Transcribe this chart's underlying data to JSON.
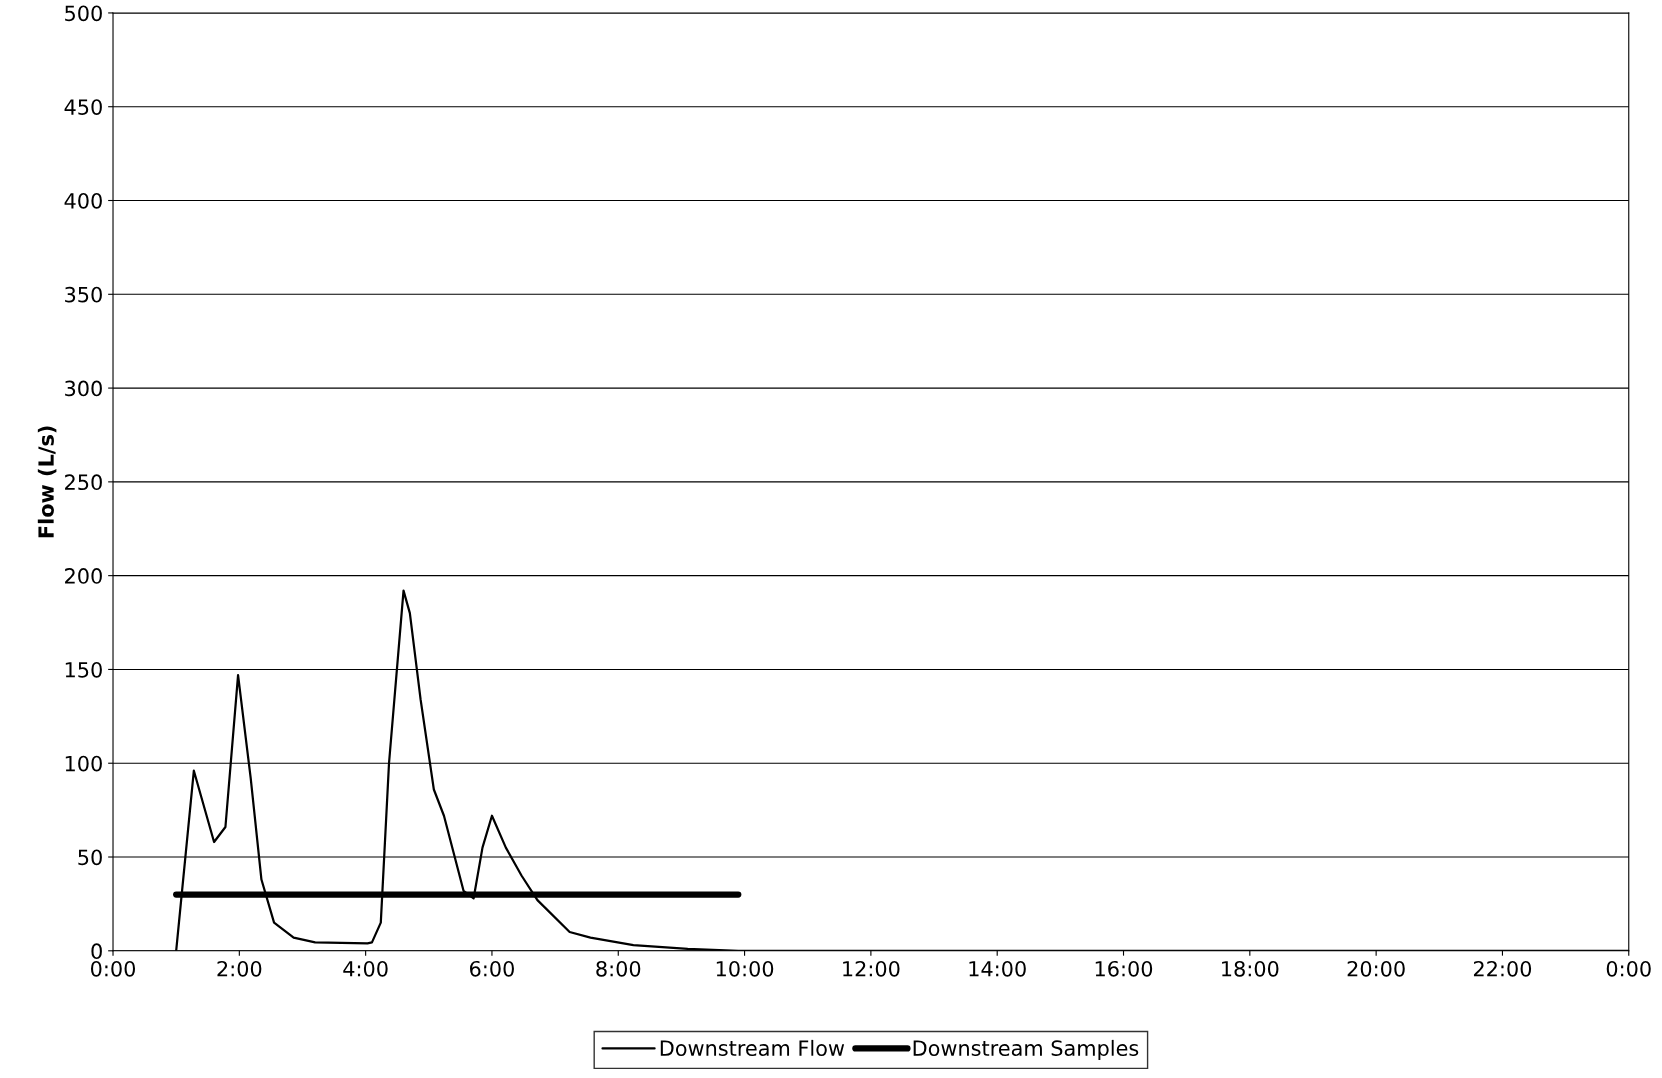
{
  "chart_data": {
    "type": "line",
    "ylabel": "Flow (L/s)",
    "xlim": [
      0,
      24
    ],
    "ylim": [
      0,
      500
    ],
    "xticks": [
      {
        "value": 0,
        "label": "0:00"
      },
      {
        "value": 2,
        "label": "2:00"
      },
      {
        "value": 4,
        "label": "4:00"
      },
      {
        "value": 6,
        "label": "6:00"
      },
      {
        "value": 8,
        "label": "8:00"
      },
      {
        "value": 10,
        "label": "10:00"
      },
      {
        "value": 12,
        "label": "12:00"
      },
      {
        "value": 14,
        "label": "14:00"
      },
      {
        "value": 16,
        "label": "16:00"
      },
      {
        "value": 18,
        "label": "18:00"
      },
      {
        "value": 20,
        "label": "20:00"
      },
      {
        "value": 22,
        "label": "22:00"
      },
      {
        "value": 24,
        "label": "0:00"
      }
    ],
    "yticks": [
      0,
      50,
      100,
      150,
      200,
      250,
      300,
      350,
      400,
      450,
      500
    ],
    "grid": "y",
    "legend": "bottom",
    "marker": "none",
    "series": [
      {
        "name": "Downstream Flow",
        "color": "#000000",
        "line_style": "solid",
        "x": [
          1.0,
          1.28,
          1.6,
          1.78,
          1.98,
          2.18,
          2.35,
          2.55,
          2.86,
          3.2,
          4.03,
          4.1,
          4.24,
          4.37,
          4.6,
          4.7,
          4.87,
          5.08,
          5.24,
          5.55,
          5.71,
          5.85,
          6.0,
          6.22,
          6.47,
          6.72,
          7.23,
          7.56,
          8.24,
          9.1,
          9.9,
          24
        ],
        "values": [
          0,
          96,
          58,
          66,
          147,
          92,
          38,
          15,
          7,
          4.5,
          4,
          4.5,
          15,
          100,
          192,
          180,
          134,
          86,
          72,
          32,
          28,
          55,
          72,
          55,
          40,
          27,
          10,
          7,
          3,
          1,
          0,
          0
        ]
      },
      {
        "name": "Downstream Samples",
        "color": "#000000",
        "line_style": "solid",
        "x": [
          1.0,
          9.9
        ],
        "values": [
          30,
          30
        ]
      }
    ]
  }
}
